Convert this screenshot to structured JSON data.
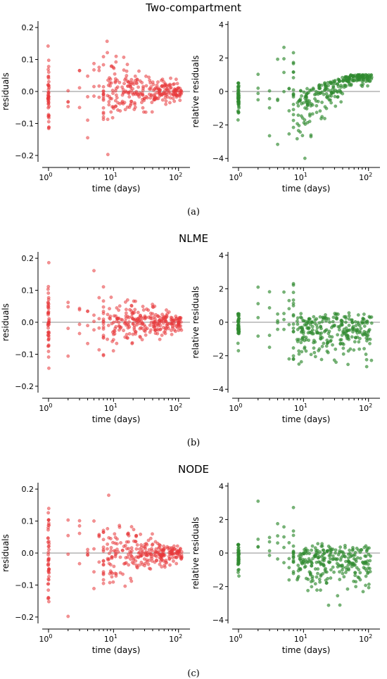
{
  "figure": {
    "panels": [
      {
        "label": "(a)",
        "title": "Two-compartment"
      },
      {
        "label": "(b)",
        "title": "NLME"
      },
      {
        "label": "(c)",
        "title": "NODE"
      }
    ]
  },
  "colors": {
    "residuals": "#e8383b",
    "relative": "#2f8a2f",
    "zero_line": "#8c8c8c"
  },
  "chart_data": [
    {
      "panel": "a",
      "type": "scatter",
      "title": "Two-compartment",
      "xlabel": "time (days)",
      "ylabel": "residuals",
      "xscale": "log",
      "xlim": [
        0.8,
        150
      ],
      "ylim": [
        -0.22,
        0.22
      ],
      "yticks": [
        "0.2",
        "0.1",
        "0.0",
        "−0.1",
        "−0.2"
      ],
      "xticks": [
        "10^0",
        "10^1",
        "10^2"
      ],
      "series": [
        {
          "values_summary": "dense vertical cluster at t=1 spanning −0.16 to 0.19; points funnel toward 0 as time increases to ~100 days"
        }
      ]
    },
    {
      "panel": "a",
      "type": "scatter",
      "title": "",
      "xlabel": "time (days)",
      "ylabel": "relative residuals",
      "xscale": "log",
      "xlim": [
        0.8,
        150
      ],
      "ylim": [
        -4.2,
        4.2
      ],
      "yticks": [
        "4",
        "2",
        "0",
        "−2",
        "−4"
      ],
      "xticks": [
        "10^0",
        "10^1",
        "10^2"
      ],
      "series": [
        {
          "values_summary": "cluster at t=1 between −1.6 and 0.5; rising trend to ~1.0 at t>30 days, scattered negatives down to −4"
        }
      ]
    },
    {
      "panel": "b",
      "type": "scatter",
      "title": "NLME",
      "xlabel": "time (days)",
      "ylabel": "residuals",
      "xscale": "log",
      "xlim": [
        0.8,
        150
      ],
      "ylim": [
        -0.22,
        0.22
      ],
      "yticks": [
        "0.2",
        "0.1",
        "0.0",
        "−0.1",
        "−0.2"
      ],
      "xticks": [
        "10^0",
        "10^1",
        "10^2"
      ],
      "series": [
        {
          "values_summary": "t=1 spans −0.16 to 0.20; narrowing toward 0 with time"
        }
      ]
    },
    {
      "panel": "b",
      "type": "scatter",
      "title": "",
      "xlabel": "time (days)",
      "ylabel": "relative residuals",
      "xscale": "log",
      "xlim": [
        0.8,
        150
      ],
      "ylim": [
        -4.2,
        4.2
      ],
      "yticks": [
        "4",
        "2",
        "0",
        "−2",
        "−4"
      ],
      "xticks": [
        "10^0",
        "10^1",
        "10^2"
      ],
      "series": [
        {
          "values_summary": "mostly between −2 and 0.8; negative tail to −4"
        }
      ]
    },
    {
      "panel": "c",
      "type": "scatter",
      "title": "NODE",
      "xlabel": "time (days)",
      "ylabel": "residuals",
      "xscale": "log",
      "xlim": [
        0.8,
        150
      ],
      "ylim": [
        -0.22,
        0.22
      ],
      "yticks": [
        "0.2",
        "0.1",
        "0.0",
        "−0.1",
        "−0.2"
      ],
      "xticks": [
        "10^0",
        "10^1",
        "10^2"
      ],
      "series": [
        {
          "values_summary": "t=1 spans −0.17 to 0.18; narrowing toward 0 with time"
        }
      ]
    },
    {
      "panel": "c",
      "type": "scatter",
      "title": "",
      "xlabel": "time (days)",
      "ylabel": "relative residuals",
      "xscale": "log",
      "xlim": [
        0.8,
        150
      ],
      "ylim": [
        -4.2,
        4.2
      ],
      "yticks": [
        "4",
        "2",
        "0",
        "−2",
        "−4"
      ],
      "xticks": [
        "10^0",
        "10^1",
        "10^2"
      ],
      "series": [
        {
          "values_summary": "spread between −3.5 and 1; outlier 2.8 near t=65; −4 near t=7"
        }
      ]
    }
  ]
}
